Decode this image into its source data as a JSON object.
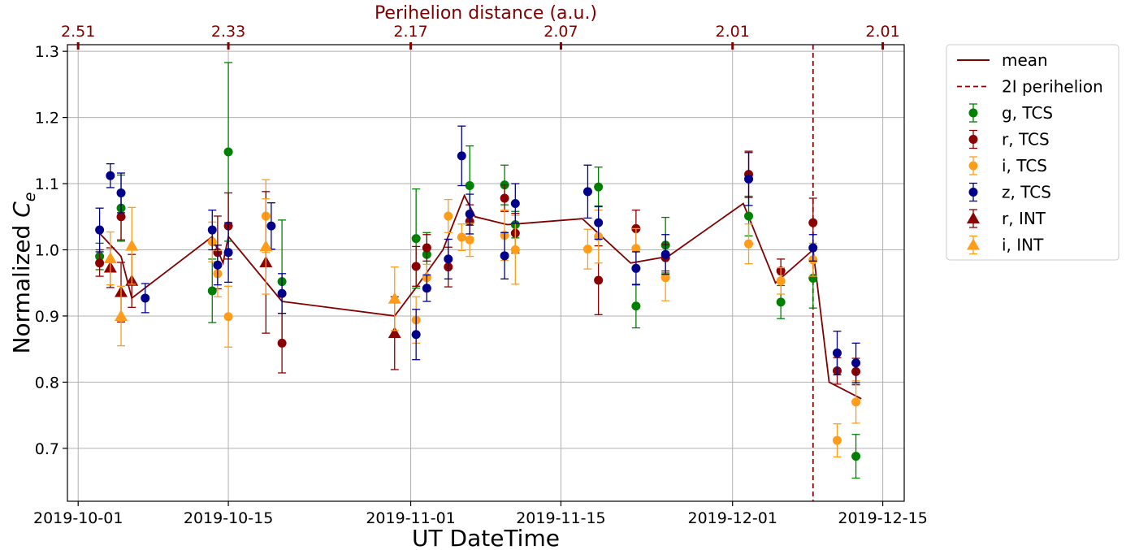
{
  "chart_data": {
    "type": "scatter",
    "title": "",
    "xlabel": "UT DateTime",
    "ylabel_main": "Normalized ",
    "ylabel_symbol": "C",
    "ylabel_sub": "e",
    "top_axis_label": "Perihelion distance (a.u.)",
    "xlim": [
      "2019-09-30",
      "2019-12-17"
    ],
    "ylim": [
      0.62,
      1.31
    ],
    "grid": true,
    "legend_position": "outside-right",
    "x_ticks": [
      {
        "date": "2019-10-01",
        "label": "2019-10-01"
      },
      {
        "date": "2019-10-15",
        "label": "2019-10-15"
      },
      {
        "date": "2019-11-01",
        "label": "2019-11-01"
      },
      {
        "date": "2019-11-15",
        "label": "2019-11-15"
      },
      {
        "date": "2019-12-01",
        "label": "2019-12-01"
      },
      {
        "date": "2019-12-15",
        "label": "2019-12-15"
      }
    ],
    "y_ticks": [
      0.7,
      0.8,
      0.9,
      1.0,
      1.1,
      1.2,
      1.3
    ],
    "top_ticks": [
      {
        "date": "2019-10-01",
        "label": "2.51"
      },
      {
        "date": "2019-10-15",
        "label": "2.33"
      },
      {
        "date": "2019-11-01",
        "label": "2.17"
      },
      {
        "date": "2019-11-15",
        "label": "2.07"
      },
      {
        "date": "2019-12-01",
        "label": "2.01"
      },
      {
        "date": "2019-12-15",
        "label": "2.01"
      }
    ],
    "perihelion": {
      "date": "2019-12-08T12:00",
      "name": "2I perihelion",
      "color": "#8b0000"
    },
    "mean": {
      "name": "mean",
      "color": "#800000",
      "points": [
        [
          "2019-10-03T00:00",
          1.025
        ],
        [
          "2019-10-05T00:00",
          0.99
        ],
        [
          "2019-10-06T00:00",
          0.927
        ],
        [
          "2019-10-13T12:00",
          1.02
        ],
        [
          "2019-10-14T12:00",
          0.98
        ],
        [
          "2019-10-15T00:00",
          1.02
        ],
        [
          "2019-10-20T00:00",
          0.922
        ],
        [
          "2019-10-30T12:00",
          0.9
        ],
        [
          "2019-11-01T12:00",
          0.943
        ],
        [
          "2019-11-04T00:00",
          1.0
        ],
        [
          "2019-11-06T00:00",
          1.082
        ],
        [
          "2019-11-07T00:00",
          1.05
        ],
        [
          "2019-11-10T00:00",
          1.038
        ],
        [
          "2019-11-17T00:00",
          1.047
        ],
        [
          "2019-11-21T12:00",
          0.98
        ],
        [
          "2019-11-25T00:00",
          0.99
        ],
        [
          "2019-12-02T00:00",
          1.07
        ],
        [
          "2019-12-05T00:00",
          0.95
        ],
        [
          "2019-12-08T12:00",
          1.0
        ],
        [
          "2019-12-10T00:00",
          0.8
        ],
        [
          "2019-12-13T00:00",
          0.775
        ]
      ]
    },
    "series": [
      {
        "name": "g, TCS",
        "color": "#008000",
        "marker": "circle",
        "points": [
          {
            "x": "2019-10-03T00:00",
            "y": 0.99,
            "err": 0.02
          },
          {
            "x": "2019-10-05T00:00",
            "y": 1.063,
            "err": 0.05
          },
          {
            "x": "2019-10-13T12:00",
            "y": 0.938,
            "err": 0.048
          },
          {
            "x": "2019-10-15T00:00",
            "y": 1.148,
            "err": 0.135
          },
          {
            "x": "2019-10-20T00:00",
            "y": 0.952,
            "err": 0.093
          },
          {
            "x": "2019-11-01T12:00",
            "y": 1.017,
            "err": 0.075
          },
          {
            "x": "2019-11-02T12:00",
            "y": 0.993,
            "err": 0.033
          },
          {
            "x": "2019-11-06T12:00",
            "y": 1.097,
            "err": 0.06
          },
          {
            "x": "2019-11-09T18:00",
            "y": 1.098,
            "err": 0.03
          },
          {
            "x": "2019-11-10T18:00",
            "y": 1.038,
            "err": 0.02
          },
          {
            "x": "2019-11-18T12:00",
            "y": 1.095,
            "err": 0.03
          },
          {
            "x": "2019-11-22T00:00",
            "y": 0.915,
            "err": 0.033
          },
          {
            "x": "2019-11-24T18:00",
            "y": 1.007,
            "err": 0.042
          },
          {
            "x": "2019-12-02T12:00",
            "y": 1.051,
            "err": 0.03
          },
          {
            "x": "2019-12-05T12:00",
            "y": 0.921,
            "err": 0.025
          },
          {
            "x": "2019-12-08T12:00",
            "y": 0.957,
            "err": 0.045
          },
          {
            "x": "2019-12-12T12:00",
            "y": 0.688,
            "err": 0.033
          }
        ]
      },
      {
        "name": "r, TCS",
        "color": "#8b0000",
        "marker": "circle",
        "points": [
          {
            "x": "2019-10-03T00:00",
            "y": 0.98,
            "err": 0.02
          },
          {
            "x": "2019-10-05T00:00",
            "y": 1.05,
            "err": 0.035
          },
          {
            "x": "2019-10-14T00:00",
            "y": 0.996,
            "err": 0.055
          },
          {
            "x": "2019-10-15T00:00",
            "y": 1.036,
            "err": 0.05
          },
          {
            "x": "2019-10-20T00:00",
            "y": 0.859,
            "err": 0.045
          },
          {
            "x": "2019-11-01T12:00",
            "y": 0.975,
            "err": 0.03
          },
          {
            "x": "2019-11-02T12:00",
            "y": 1.003,
            "err": 0.02
          },
          {
            "x": "2019-11-04T12:00",
            "y": 0.974,
            "err": 0.03
          },
          {
            "x": "2019-11-06T12:00",
            "y": 1.043,
            "err": 0.025
          },
          {
            "x": "2019-11-09T18:00",
            "y": 1.078,
            "err": 0.02
          },
          {
            "x": "2019-11-10T18:00",
            "y": 1.025,
            "err": 0.03
          },
          {
            "x": "2019-11-18T12:00",
            "y": 0.954,
            "err": 0.052
          },
          {
            "x": "2019-11-22T00:00",
            "y": 1.032,
            "err": 0.028
          },
          {
            "x": "2019-11-24T18:00",
            "y": 0.988,
            "err": 0.02
          },
          {
            "x": "2019-12-02T12:00",
            "y": 1.114,
            "err": 0.035
          },
          {
            "x": "2019-12-05T12:00",
            "y": 0.968,
            "err": 0.018
          },
          {
            "x": "2019-12-08T12:00",
            "y": 1.041,
            "err": 0.037
          },
          {
            "x": "2019-12-10T18:00",
            "y": 0.817,
            "err": 0.02
          },
          {
            "x": "2019-12-12T12:00",
            "y": 0.816,
            "err": 0.02
          }
        ]
      },
      {
        "name": "i, TCS",
        "color": "#ff9d1a",
        "marker": "circle",
        "points": [
          {
            "x": "2019-10-13T12:00",
            "y": 1.012,
            "err": 0.03
          },
          {
            "x": "2019-10-14T00:00",
            "y": 0.964,
            "err": 0.035
          },
          {
            "x": "2019-10-15T00:00",
            "y": 0.899,
            "err": 0.046
          },
          {
            "x": "2019-10-18T12:00",
            "y": 1.051,
            "err": 0.055
          },
          {
            "x": "2019-11-01T12:00",
            "y": 0.894,
            "err": 0.035
          },
          {
            "x": "2019-11-02T12:00",
            "y": 0.958,
            "err": 0.02
          },
          {
            "x": "2019-11-04T12:00",
            "y": 1.051,
            "err": 0.025
          },
          {
            "x": "2019-11-05T18:00",
            "y": 1.019,
            "err": 0.02
          },
          {
            "x": "2019-11-06T12:00",
            "y": 1.015,
            "err": 0.025
          },
          {
            "x": "2019-11-09T18:00",
            "y": 1.022,
            "err": 0.038
          },
          {
            "x": "2019-11-10T18:00",
            "y": 1.0,
            "err": 0.052
          },
          {
            "x": "2019-11-17T12:00",
            "y": 1.001,
            "err": 0.03
          },
          {
            "x": "2019-11-18T12:00",
            "y": 1.02,
            "err": 0.04
          },
          {
            "x": "2019-11-22T00:00",
            "y": 1.002,
            "err": 0.03
          },
          {
            "x": "2019-11-24T18:00",
            "y": 0.958,
            "err": 0.035
          },
          {
            "x": "2019-12-02T12:00",
            "y": 1.009,
            "err": 0.03
          },
          {
            "x": "2019-12-05T12:00",
            "y": 0.953,
            "err": 0.02
          },
          {
            "x": "2019-12-08T12:00",
            "y": 0.985,
            "err": 0.025
          },
          {
            "x": "2019-12-10T18:00",
            "y": 0.712,
            "err": 0.025
          },
          {
            "x": "2019-12-12T12:00",
            "y": 0.77,
            "err": 0.032
          }
        ]
      },
      {
        "name": "z, TCS",
        "color": "#00008b",
        "marker": "circle",
        "points": [
          {
            "x": "2019-10-03T00:00",
            "y": 1.03,
            "err": 0.033
          },
          {
            "x": "2019-10-04T00:00",
            "y": 1.112,
            "err": 0.018
          },
          {
            "x": "2019-10-05T00:00",
            "y": 1.086,
            "err": 0.03
          },
          {
            "x": "2019-10-07T06:00",
            "y": 0.927,
            "err": 0.022
          },
          {
            "x": "2019-10-13T12:00",
            "y": 1.03,
            "err": 0.03
          },
          {
            "x": "2019-10-14T00:00",
            "y": 0.977,
            "err": 0.03
          },
          {
            "x": "2019-10-15T00:00",
            "y": 0.996,
            "err": 0.045
          },
          {
            "x": "2019-10-19T00:00",
            "y": 1.036,
            "err": 0.035
          },
          {
            "x": "2019-10-20T00:00",
            "y": 0.934,
            "err": 0.03
          },
          {
            "x": "2019-11-01T12:00",
            "y": 0.872,
            "err": 0.038
          },
          {
            "x": "2019-11-02T12:00",
            "y": 0.942,
            "err": 0.02
          },
          {
            "x": "2019-11-04T12:00",
            "y": 0.986,
            "err": 0.03
          },
          {
            "x": "2019-11-05T18:00",
            "y": 1.142,
            "err": 0.045
          },
          {
            "x": "2019-11-06T12:00",
            "y": 1.054,
            "err": 0.03
          },
          {
            "x": "2019-11-09T18:00",
            "y": 0.991,
            "err": 0.035
          },
          {
            "x": "2019-11-10T18:00",
            "y": 1.07,
            "err": 0.03
          },
          {
            "x": "2019-11-17T12:00",
            "y": 1.088,
            "err": 0.04
          },
          {
            "x": "2019-11-18T12:00",
            "y": 1.041,
            "err": 0.025
          },
          {
            "x": "2019-11-22T00:00",
            "y": 0.972,
            "err": 0.025
          },
          {
            "x": "2019-11-24T18:00",
            "y": 0.993,
            "err": 0.03
          },
          {
            "x": "2019-12-02T12:00",
            "y": 1.107,
            "err": 0.04
          },
          {
            "x": "2019-12-08T12:00",
            "y": 1.003,
            "err": 0.02
          },
          {
            "x": "2019-12-10T18:00",
            "y": 0.844,
            "err": 0.033
          },
          {
            "x": "2019-12-12T12:00",
            "y": 0.829,
            "err": 0.03
          }
        ]
      },
      {
        "name": "r, INT",
        "color": "#8b0000",
        "marker": "triangle",
        "points": [
          {
            "x": "2019-10-04T00:00",
            "y": 0.973,
            "err": 0.03
          },
          {
            "x": "2019-10-05T00:00",
            "y": 0.936,
            "err": 0.045
          },
          {
            "x": "2019-10-06T00:00",
            "y": 0.953,
            "err": 0.04
          },
          {
            "x": "2019-10-18T12:00",
            "y": 0.981,
            "err": 0.107
          },
          {
            "x": "2019-10-30T12:00",
            "y": 0.874,
            "err": 0.055
          }
        ]
      },
      {
        "name": "i, INT",
        "color": "#ff9d1a",
        "marker": "triangle",
        "points": [
          {
            "x": "2019-10-04T00:00",
            "y": 0.987,
            "err": 0.04
          },
          {
            "x": "2019-10-05T00:00",
            "y": 0.9,
            "err": 0.045
          },
          {
            "x": "2019-10-06T00:00",
            "y": 1.006,
            "err": 0.058
          },
          {
            "x": "2019-10-18T12:00",
            "y": 1.005,
            "err": 0.072
          },
          {
            "x": "2019-10-30T12:00",
            "y": 0.926,
            "err": 0.048
          }
        ]
      }
    ]
  }
}
